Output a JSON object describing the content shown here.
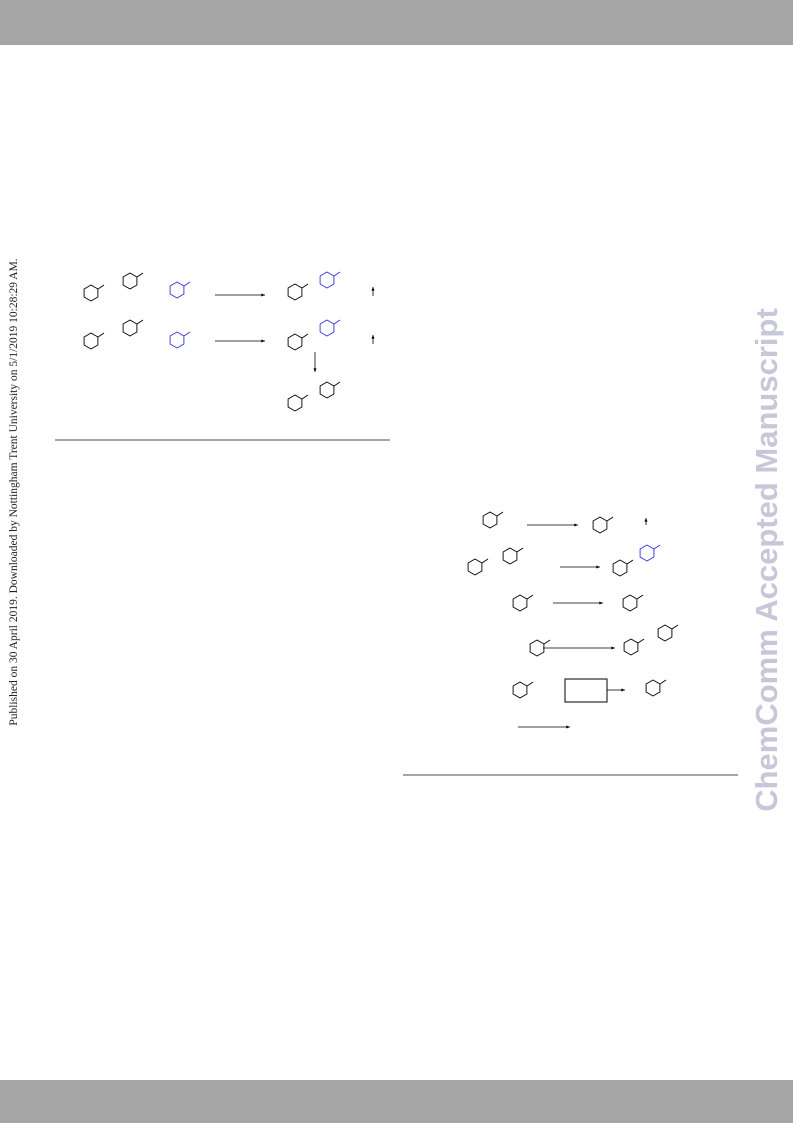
{
  "side_notice": "Published on 30 April 2019. Downloaded by Nottingham Trent University on 5/1/2019 10:28:29 AM.",
  "watermark": "ChemComm Accepted Manuscript"
}
